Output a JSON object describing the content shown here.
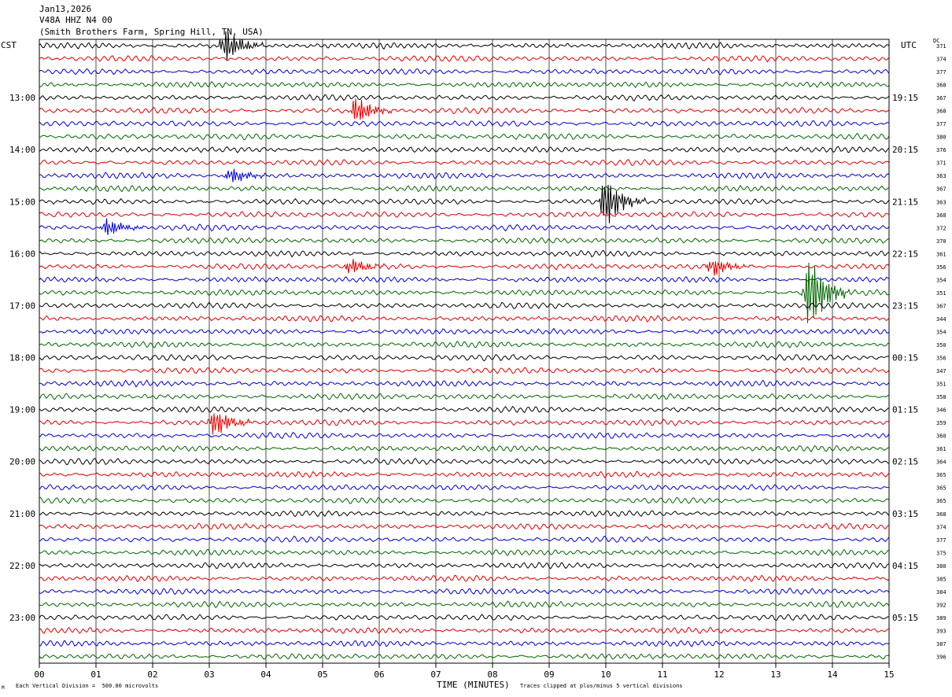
{
  "header": {
    "date": "Jan13,2026",
    "station": "V48A HHZ N4 00",
    "location": "(Smith Brothers Farm, Spring Hill, TN, USA)"
  },
  "left_zone_label": "CST",
  "right_zone_label": "UTC",
  "dc_label": "DC",
  "footer": {
    "scale_note": "Each Vertical Division =  500.00 microvolts",
    "clip_note": "Traces clipped at plus/minus 5 vertical divisions",
    "corner_mark": "M"
  },
  "colors": {
    "trace_cycle": [
      "#000000",
      "#e00000",
      "#0000d0",
      "#006600"
    ],
    "grid": "#000000"
  },
  "chart_data": {
    "type": "line",
    "xlabel": "TIME (MINUTES)",
    "xlim": [
      0,
      15
    ],
    "x_ticks": [
      "00",
      "01",
      "02",
      "03",
      "04",
      "05",
      "06",
      "07",
      "08",
      "09",
      "10",
      "11",
      "12",
      "13",
      "14",
      "15"
    ],
    "rows_per_hour": 4,
    "row_count": 48,
    "left_hour_labels": [
      {
        "row": 4,
        "label": "13:00"
      },
      {
        "row": 8,
        "label": "14:00"
      },
      {
        "row": 12,
        "label": "15:00"
      },
      {
        "row": 16,
        "label": "16:00"
      },
      {
        "row": 20,
        "label": "17:00"
      },
      {
        "row": 24,
        "label": "18:00"
      },
      {
        "row": 28,
        "label": "19:00"
      },
      {
        "row": 32,
        "label": "20:00"
      },
      {
        "row": 36,
        "label": "21:00"
      },
      {
        "row": 40,
        "label": "22:00"
      },
      {
        "row": 44,
        "label": "23:00"
      }
    ],
    "right_hour_labels": [
      {
        "row": 4,
        "label": "19:15"
      },
      {
        "row": 8,
        "label": "20:15"
      },
      {
        "row": 12,
        "label": "21:15"
      },
      {
        "row": 16,
        "label": "22:15"
      },
      {
        "row": 20,
        "label": "23:15"
      },
      {
        "row": 24,
        "label": "00:15"
      },
      {
        "row": 28,
        "label": "01:15"
      },
      {
        "row": 32,
        "label": "02:15"
      },
      {
        "row": 36,
        "label": "03:15"
      },
      {
        "row": 40,
        "label": "04:15"
      },
      {
        "row": 44,
        "label": "05:15"
      }
    ],
    "dc_offsets": [
      "371",
      "374",
      "377",
      "368",
      "367",
      "368",
      "377",
      "380",
      "376",
      "371",
      "363",
      "367",
      "363",
      "368",
      "372",
      "370",
      "361",
      "356",
      "354",
      "351",
      "367",
      "344",
      "354",
      "350",
      "356",
      "347",
      "351",
      "358",
      "346",
      "359",
      "360",
      "361",
      "364",
      "365",
      "365",
      "365",
      "368",
      "374",
      "377",
      "375",
      "380",
      "385",
      "384",
      "392",
      "389",
      "393",
      "387",
      "396"
    ],
    "events": [
      {
        "row": 0,
        "minute": 3.3,
        "amplitude": 1.3
      },
      {
        "row": 5,
        "minute": 5.6,
        "amplitude": 1.1
      },
      {
        "row": 10,
        "minute": 3.4,
        "amplitude": 0.6
      },
      {
        "row": 12,
        "minute": 10.0,
        "amplitude": 2.0
      },
      {
        "row": 14,
        "minute": 1.2,
        "amplitude": 0.7
      },
      {
        "row": 17,
        "minute": 5.5,
        "amplitude": 0.6
      },
      {
        "row": 17,
        "minute": 11.9,
        "amplitude": 0.7
      },
      {
        "row": 19,
        "minute": 13.6,
        "amplitude": 3.0
      },
      {
        "row": 29,
        "minute": 3.1,
        "amplitude": 1.1
      }
    ]
  }
}
